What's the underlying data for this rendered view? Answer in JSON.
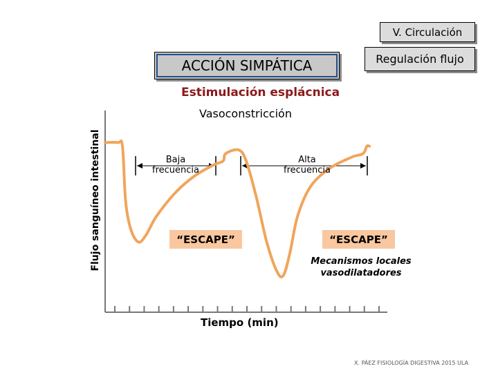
{
  "header": {
    "section": "V. Circulación",
    "title": "ACCIÓN SIMPÁTICA",
    "subtitle_box": "Regulación flujo"
  },
  "chart_data": {
    "type": "line",
    "stimulus_label": "Estimulación esplácnica",
    "response_label": "Vasoconstricción",
    "ylabel": "Flujo sanguíneo intestinal",
    "xlabel": "Tiempo (min)",
    "phases": [
      {
        "name": "Baja\nfrecuencia",
        "label_lines": [
          "Baja",
          "frecuencia"
        ]
      },
      {
        "name": "Alta\nfrecuencia",
        "label_lines": [
          "Alta",
          "frecuencia"
        ]
      }
    ],
    "annotations": {
      "escape_1": "“ESCAPE”",
      "escape_2": "“ESCAPE”",
      "mechanisms": "Mecanismos locales vasodilatadores"
    },
    "x_ticks": 19,
    "series": [
      {
        "color": "#f0a55c",
        "points": [
          [
            0,
            0.92
          ],
          [
            1.0,
            0.92
          ],
          [
            1.35,
            0.9
          ],
          [
            1.6,
            0.6
          ],
          [
            2.0,
            0.45
          ],
          [
            2.6,
            0.38
          ],
          [
            3.2,
            0.42
          ],
          [
            4.0,
            0.52
          ],
          [
            5.5,
            0.65
          ],
          [
            7.0,
            0.74
          ],
          [
            8.5,
            0.8
          ],
          [
            9.2,
            0.82
          ],
          [
            9.4,
            0.86
          ],
          [
            10.4,
            0.88
          ],
          [
            11.0,
            0.82
          ],
          [
            11.8,
            0.62
          ],
          [
            12.6,
            0.38
          ],
          [
            13.4,
            0.22
          ],
          [
            13.9,
            0.2
          ],
          [
            14.4,
            0.32
          ],
          [
            15.0,
            0.52
          ],
          [
            16.0,
            0.68
          ],
          [
            17.5,
            0.78
          ],
          [
            19.2,
            0.84
          ],
          [
            20.1,
            0.86
          ],
          [
            20.4,
            0.9
          ],
          [
            20.6,
            0.9
          ]
        ]
      }
    ]
  },
  "footer": "X. PÁEZ FISIOLOGÍA DIGESTIVA 2015 ULA"
}
